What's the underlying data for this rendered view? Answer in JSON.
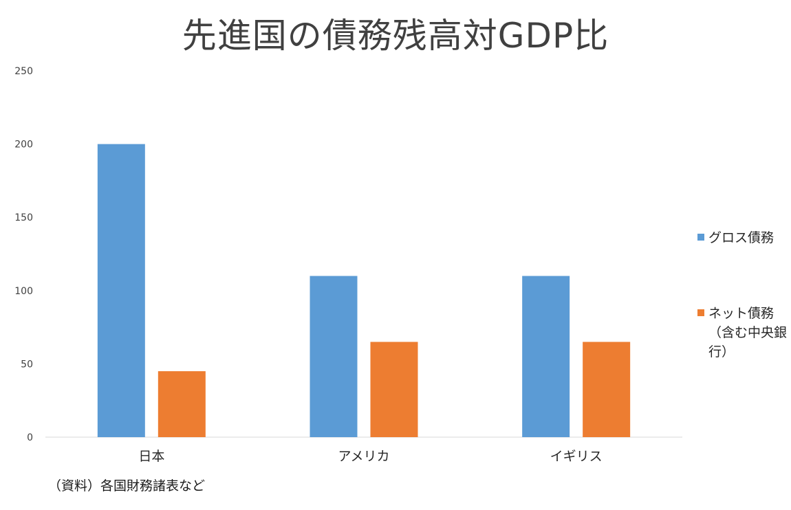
{
  "chart_data": {
    "type": "bar",
    "title": "先進国の債務残高対GDP比",
    "categories": [
      "日本",
      "アメリカ",
      "イギリス"
    ],
    "series": [
      {
        "name": "グロス債務",
        "values": [
          200,
          110,
          110
        ],
        "color": "#5b9bd5"
      },
      {
        "name": "ネット債務（含む中央銀行）",
        "values": [
          45,
          65,
          65
        ],
        "color": "#ed7d31"
      }
    ],
    "ylim": [
      0,
      250
    ],
    "yticks": [
      0,
      50,
      100,
      150,
      200,
      250
    ],
    "xlabel": "",
    "ylabel": "",
    "grid": false,
    "legend_position": "right",
    "axis_color": "#d9d9d9"
  },
  "source_note": "（資料）各国財務諸表など"
}
